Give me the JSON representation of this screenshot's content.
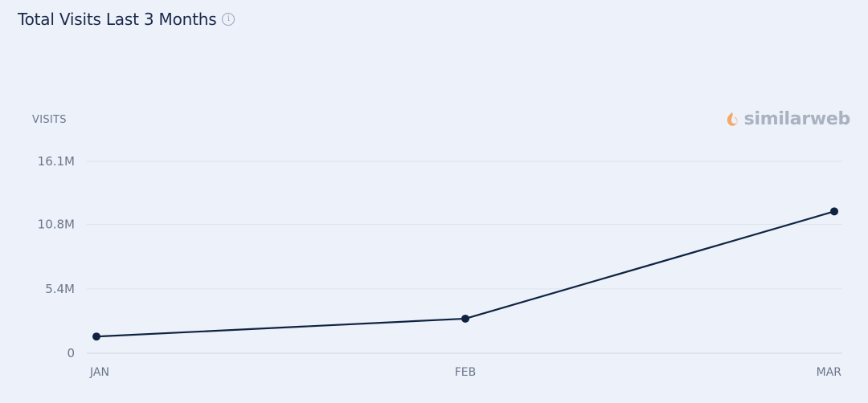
{
  "header": {
    "title": "Total Visits Last 3 Months",
    "info_icon": "info-icon"
  },
  "brand": {
    "name": "similarweb",
    "logo_icon": "similarweb-logo-icon",
    "logo_color": "#f4a96b"
  },
  "colors": {
    "line": "#0f2340",
    "grid": "#dde3ee",
    "background": "#ecf1fa"
  },
  "chart_data": {
    "type": "line",
    "title": "Total Visits Last 3 Months",
    "ylabel": "VISITS",
    "xlabel": "",
    "categories": [
      "JAN",
      "FEB",
      "MAR"
    ],
    "series": [
      {
        "name": "Visits",
        "values": [
          1400000,
          2900000,
          11900000
        ]
      }
    ],
    "ylim": [
      0,
      16100000
    ],
    "yticks": [
      0,
      5400000,
      10800000,
      16100000
    ],
    "ytick_labels": [
      "0",
      "5.4M",
      "10.8M",
      "16.1M"
    ],
    "grid": true,
    "legend": "none"
  }
}
